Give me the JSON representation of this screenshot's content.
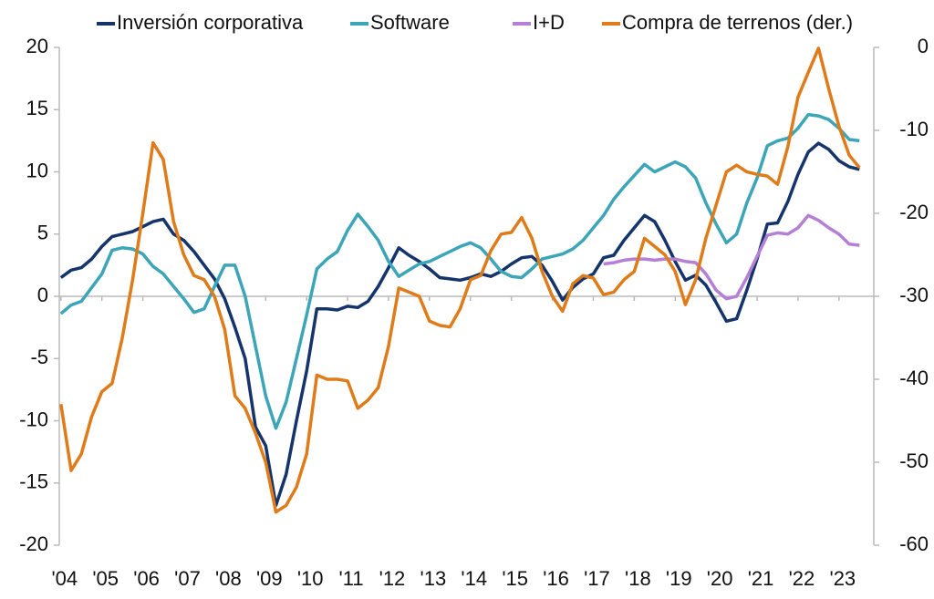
{
  "chart_data": {
    "type": "line",
    "x": [
      2004,
      2004.25,
      2004.5,
      2004.75,
      2005,
      2005.25,
      2005.5,
      2005.75,
      2006,
      2006.25,
      2006.5,
      2006.75,
      2007,
      2007.25,
      2007.5,
      2007.75,
      2008,
      2008.25,
      2008.5,
      2008.75,
      2009,
      2009.25,
      2009.5,
      2009.75,
      2010,
      2010.25,
      2010.5,
      2010.75,
      2011,
      2011.25,
      2011.5,
      2011.75,
      2012,
      2012.25,
      2012.5,
      2012.75,
      2013,
      2013.25,
      2013.5,
      2013.75,
      2014,
      2014.25,
      2014.5,
      2014.75,
      2015,
      2015.25,
      2015.5,
      2015.75,
      2016,
      2016.25,
      2016.5,
      2016.75,
      2017,
      2017.25,
      2017.5,
      2017.75,
      2018,
      2018.25,
      2018.5,
      2018.75,
      2019,
      2019.25,
      2019.5,
      2019.75,
      2020,
      2020.25,
      2020.5,
      2020.75,
      2021,
      2021.25,
      2021.5,
      2021.75,
      2022,
      2022.25,
      2022.5,
      2022.75,
      2023,
      2023.25,
      2023.5
    ],
    "series": [
      {
        "name": "Inversión corporativa",
        "color": "#14346b",
        "values": [
          1.5,
          2.1,
          2.3,
          3.0,
          4.0,
          4.8,
          5.0,
          5.2,
          5.6,
          6.0,
          6.2,
          5.0,
          4.5,
          3.6,
          2.5,
          1.4,
          -0.2,
          -2.5,
          -5.0,
          -10.5,
          -12.0,
          -16.8,
          -14.3,
          -10.0,
          -6.0,
          -1.0,
          -1.0,
          -1.1,
          -0.8,
          -0.9,
          -0.4,
          0.8,
          2.3,
          3.9,
          3.3,
          2.8,
          2.2,
          1.5,
          1.4,
          1.3,
          1.5,
          1.8,
          1.6,
          2.0,
          2.6,
          3.1,
          3.2,
          2.5,
          1.2,
          -0.3,
          0.7,
          1.4,
          1.8,
          3.1,
          3.3,
          4.5,
          5.5,
          6.5,
          6.0,
          4.5,
          2.8,
          1.3,
          1.7,
          0.9,
          -0.5,
          -2.0,
          -1.8,
          0.5,
          3.0,
          5.8,
          5.9,
          7.6,
          9.8,
          11.6,
          12.3,
          11.8,
          10.9,
          10.4,
          10.2
        ]
      },
      {
        "name": "Software",
        "color": "#3ca5b8",
        "values": [
          -1.4,
          -0.7,
          -0.4,
          0.7,
          1.8,
          3.7,
          3.9,
          3.8,
          3.4,
          2.4,
          1.8,
          0.8,
          -0.2,
          -1.3,
          -1.0,
          0.8,
          2.5,
          2.5,
          0.0,
          -4.0,
          -8.0,
          -10.6,
          -8.5,
          -5.0,
          -1.5,
          2.2,
          3.0,
          3.6,
          5.3,
          6.6,
          5.6,
          4.5,
          2.8,
          1.6,
          2.1,
          2.6,
          2.8,
          3.2,
          3.6,
          4.0,
          4.3,
          3.9,
          3.0,
          2.0,
          1.6,
          1.5,
          2.2,
          3.0,
          3.2,
          3.4,
          3.8,
          4.5,
          5.5,
          6.5,
          7.8,
          8.8,
          9.7,
          10.6,
          10.0,
          10.4,
          10.8,
          10.4,
          9.5,
          7.5,
          5.8,
          4.3,
          5.0,
          7.5,
          9.5,
          12.1,
          12.5,
          12.7,
          13.5,
          14.6,
          14.5,
          14.2,
          13.5,
          12.6,
          12.5
        ]
      },
      {
        "name": "I+D",
        "color": "#b57fd6",
        "values": [
          null,
          null,
          null,
          null,
          null,
          null,
          null,
          null,
          null,
          null,
          null,
          null,
          null,
          null,
          null,
          null,
          null,
          null,
          null,
          null,
          null,
          null,
          null,
          null,
          null,
          null,
          null,
          null,
          null,
          null,
          null,
          null,
          null,
          null,
          null,
          null,
          null,
          null,
          null,
          null,
          null,
          null,
          null,
          null,
          null,
          null,
          null,
          null,
          null,
          null,
          null,
          null,
          null,
          2.6,
          2.7,
          2.9,
          3.0,
          3.0,
          2.9,
          3.0,
          3.0,
          2.8,
          2.7,
          1.8,
          0.5,
          -0.2,
          0.0,
          1.5,
          3.2,
          4.9,
          5.1,
          5.0,
          5.5,
          6.5,
          6.1,
          5.5,
          5.0,
          4.2,
          4.1
        ]
      },
      {
        "name": "Compra de terrenos (der.)",
        "color": "#e07b1a",
        "axis": "y2",
        "values": [
          -43,
          -51,
          -49,
          -44.5,
          -41.5,
          -40.5,
          -35,
          -28,
          -20,
          -11.5,
          -13.5,
          -21,
          -25,
          -27.5,
          -28,
          -30,
          -34,
          -42,
          -43.5,
          -46.5,
          -50,
          -56,
          -55.2,
          -53,
          -49,
          -39.5,
          -40,
          -40,
          -40.2,
          -43.5,
          -42.5,
          -41,
          -36,
          -29,
          -29.5,
          -30,
          -33,
          -33.5,
          -33.7,
          -31.5,
          -28,
          -27.5,
          -24.5,
          -22.5,
          -22.3,
          -20.5,
          -23,
          -27,
          -30,
          -31.8,
          -28.5,
          -27.5,
          -27.8,
          -29.8,
          -29.5,
          -28,
          -27,
          -23,
          -24,
          -25,
          -27,
          -31,
          -28,
          -23,
          -19,
          -15,
          -14.2,
          -15,
          -15.3,
          -15.5,
          -16.5,
          -12,
          -6,
          -3,
          -0.1,
          -5,
          -9.5,
          -13,
          -14.5
        ]
      }
    ],
    "xlim": [
      2003.96,
      2023.85
    ],
    "xticks": [
      {
        "value": 2004,
        "label": "'04"
      },
      {
        "value": 2005,
        "label": "'05"
      },
      {
        "value": 2006,
        "label": "'06"
      },
      {
        "value": 2007,
        "label": "'07"
      },
      {
        "value": 2008,
        "label": "'08"
      },
      {
        "value": 2009,
        "label": "'09"
      },
      {
        "value": 2010,
        "label": "'10"
      },
      {
        "value": 2011,
        "label": "'11"
      },
      {
        "value": 2012,
        "label": "'12"
      },
      {
        "value": 2013,
        "label": "'13"
      },
      {
        "value": 2014,
        "label": "'14"
      },
      {
        "value": 2015,
        "label": "'15"
      },
      {
        "value": 2016,
        "label": "'16"
      },
      {
        "value": 2017,
        "label": "'17"
      },
      {
        "value": 2018,
        "label": "'18"
      },
      {
        "value": 2019,
        "label": "'19"
      },
      {
        "value": 2020,
        "label": "'20"
      },
      {
        "value": 2021,
        "label": "'21"
      },
      {
        "value": 2022,
        "label": "'22"
      },
      {
        "value": 2023,
        "label": "'23"
      }
    ],
    "ylim": [
      -20,
      20
    ],
    "yticks": [
      -20,
      -15,
      -10,
      -5,
      0,
      5,
      10,
      15,
      20
    ],
    "y2lim": [
      -60,
      0
    ],
    "y2ticks": [
      -60,
      -50,
      -40,
      -30,
      -20,
      -10,
      0
    ],
    "legend": "top"
  }
}
